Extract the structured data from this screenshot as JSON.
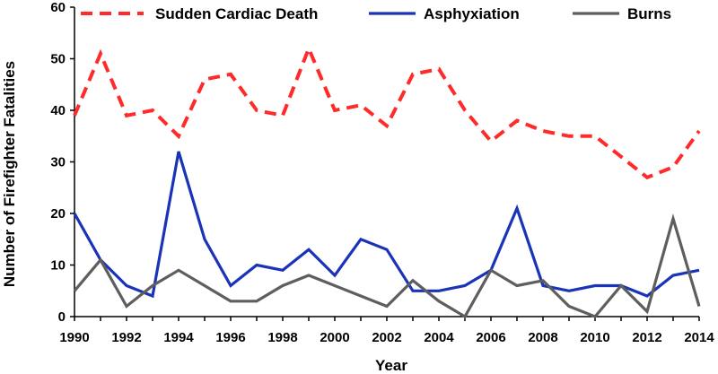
{
  "chart_data": {
    "type": "line",
    "title": "",
    "xlabel": "Year",
    "ylabel": "Number of Firefighter Fatalities",
    "x": [
      1990,
      1991,
      1992,
      1993,
      1994,
      1995,
      1996,
      1997,
      1998,
      1999,
      2000,
      2001,
      2002,
      2003,
      2004,
      2005,
      2006,
      2007,
      2008,
      2009,
      2010,
      2011,
      2012,
      2013,
      2014
    ],
    "x_ticks": [
      "1990",
      "1992",
      "1994",
      "1996",
      "1998",
      "2000",
      "2002",
      "2004",
      "2006",
      "2008",
      "2010",
      "2012",
      "2014"
    ],
    "y_ticks": [
      "0",
      "10",
      "20",
      "30",
      "40",
      "50",
      "60"
    ],
    "ylim": [
      0,
      60
    ],
    "xlim": [
      1990,
      2014
    ],
    "grid": false,
    "legend_position": "top",
    "series": [
      {
        "name": "Sudden Cardiac Death",
        "color": "#ff2a2a",
        "style": "dashed",
        "values": [
          39,
          51,
          39,
          40,
          35,
          46,
          47,
          40,
          39,
          52,
          40,
          41,
          37,
          47,
          48,
          40,
          34,
          38,
          36,
          35,
          35,
          31,
          27,
          29,
          36
        ]
      },
      {
        "name": "Asphyxiation",
        "color": "#1a33b8",
        "style": "solid",
        "values": [
          20,
          11,
          6,
          4,
          32,
          15,
          6,
          10,
          9,
          13,
          8,
          15,
          13,
          5,
          5,
          6,
          9,
          21,
          6,
          5,
          6,
          6,
          4,
          8,
          9
        ]
      },
      {
        "name": "Burns",
        "color": "#5e5e5e",
        "style": "solid",
        "values": [
          5,
          11,
          2,
          6,
          9,
          6,
          3,
          3,
          6,
          8,
          6,
          4,
          2,
          7,
          3,
          0,
          9,
          6,
          7,
          2,
          0,
          6,
          1,
          19,
          2
        ]
      }
    ]
  }
}
